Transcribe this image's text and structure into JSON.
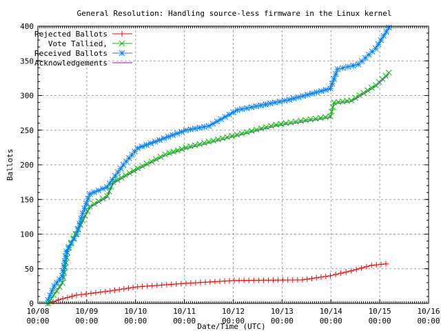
{
  "chart_data": {
    "type": "line",
    "title": "General Resolution: Handling source-less firmware in the Linux kernel",
    "xlabel": "Date/Time (UTC)",
    "ylabel": "Ballots",
    "ylim": [
      0,
      400
    ],
    "yticks": [
      0,
      50,
      100,
      150,
      200,
      250,
      300,
      350,
      400
    ],
    "xlim": [
      "10/08 00:00",
      "10/16 00:00"
    ],
    "xticks": [
      {
        "date": "10/08",
        "time": "00:00"
      },
      {
        "date": "10/09",
        "time": "00:00"
      },
      {
        "date": "10/10",
        "time": "00:00"
      },
      {
        "date": "10/11",
        "time": "00:00"
      },
      {
        "date": "10/12",
        "time": "00:00"
      },
      {
        "date": "10/13",
        "time": "00:00"
      },
      {
        "date": "10/14",
        "time": "00:00"
      },
      {
        "date": "10/15",
        "time": "00:00"
      },
      {
        "date": "10/16",
        "time": "00:00"
      }
    ],
    "grid": true,
    "legend_position": "top-left",
    "series": [
      {
        "name": "Rejected Ballots",
        "color": "#ff0000",
        "marker": "plus",
        "points": [
          [
            "10/08 05:00",
            0
          ],
          [
            "10/08 10:00",
            5
          ],
          [
            "10/08 19:00",
            12
          ],
          [
            "10/09 11:30",
            18
          ],
          [
            "10/10 01:00",
            24
          ],
          [
            "10/11 00:45",
            29
          ],
          [
            "10/12 00:30",
            33
          ],
          [
            "10/13 10:00",
            34
          ],
          [
            "10/13 23:45",
            40
          ],
          [
            "10/14 10:00",
            47
          ],
          [
            "10/14 20:00",
            55
          ],
          [
            "10/15 03:00",
            57
          ]
        ]
      },
      {
        "name": "Vote Tallied,",
        "color": "#00c000",
        "marker": "cross",
        "points": [
          [
            "10/08 05:00",
            0
          ],
          [
            "10/08 12:00",
            30
          ],
          [
            "10/08 15:00",
            80
          ],
          [
            "10/08 22:00",
            120
          ],
          [
            "10/09 01:30",
            140
          ],
          [
            "10/09 10:00",
            155
          ],
          [
            "10/09 13:00",
            175
          ],
          [
            "10/10 01:00",
            195
          ],
          [
            "10/10 14:30",
            215
          ],
          [
            "10/11 00:45",
            225
          ],
          [
            "10/11 21:00",
            240
          ],
          [
            "10/12 21:00",
            258
          ],
          [
            "10/13 23:45",
            270
          ],
          [
            "10/14 01:30",
            290
          ],
          [
            "10/14 10:00",
            293
          ],
          [
            "10/14 22:00",
            315
          ],
          [
            "10/15 04:30",
            333
          ]
        ]
      },
      {
        "name": "Received Ballots",
        "color": "#0080ff",
        "marker": "star",
        "points": [
          [
            "10/08 05:00",
            5
          ],
          [
            "10/08 08:00",
            25
          ],
          [
            "10/08 12:00",
            40
          ],
          [
            "10/08 14:00",
            75
          ],
          [
            "10/08 19:00",
            100
          ],
          [
            "10/08 22:00",
            130
          ],
          [
            "10/09 01:30",
            158
          ],
          [
            "10/09 10:00",
            168
          ],
          [
            "10/09 18:00",
            200
          ],
          [
            "10/10 01:00",
            224
          ],
          [
            "10/11 00:45",
            250
          ],
          [
            "10/11 12:00",
            256
          ],
          [
            "10/12 02:00",
            279
          ],
          [
            "10/13 03:30",
            294
          ],
          [
            "10/13 23:45",
            310
          ],
          [
            "10/14 03:15",
            338
          ],
          [
            "10/14 13:30",
            345
          ],
          [
            "10/14 22:00",
            368
          ],
          [
            "10/15 04:30",
            398
          ]
        ]
      },
      {
        "name": "Acknowledgements",
        "color": "#a000e0",
        "marker": "none",
        "points": [
          [
            "10/08 05:00",
            0
          ],
          [
            "10/08 12:00",
            28
          ],
          [
            "10/08 15:00",
            78
          ],
          [
            "10/08 22:00",
            118
          ],
          [
            "10/09 01:30",
            138
          ],
          [
            "10/09 10:00",
            153
          ],
          [
            "10/09 13:00",
            173
          ],
          [
            "10/10 01:00",
            193
          ],
          [
            "10/10 14:30",
            213
          ],
          [
            "10/11 00:45",
            223
          ],
          [
            "10/11 21:00",
            238
          ],
          [
            "10/12 21:00",
            256
          ],
          [
            "10/13 23:45",
            268
          ],
          [
            "10/14 01:30",
            288
          ],
          [
            "10/14 10:00",
            291
          ],
          [
            "10/14 22:00",
            313
          ],
          [
            "10/15 04:30",
            331
          ]
        ]
      }
    ]
  }
}
